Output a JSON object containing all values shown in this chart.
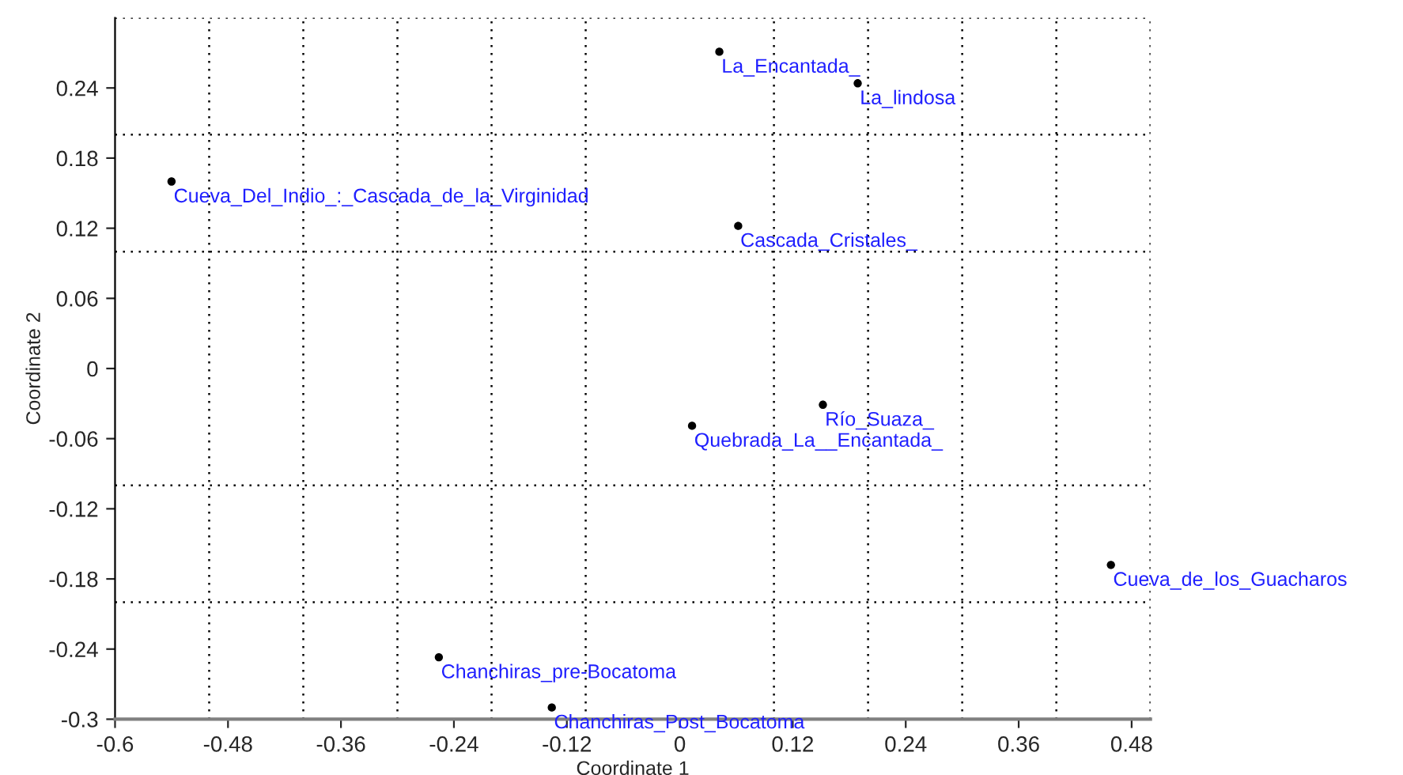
{
  "chart_data": {
    "type": "scatter",
    "xlabel": "Coordinate 1",
    "ylabel": "Coordinate 2",
    "x": [
      -0.54,
      0.042,
      0.189,
      0.062,
      0.152,
      0.013,
      0.458,
      -0.256,
      -0.136
    ],
    "series": [
      {
        "color": "#000000",
        "values": [
          0.16,
          0.271,
          0.244,
          0.122,
          -0.031,
          -0.049,
          -0.168,
          -0.247,
          -0.29
        ]
      }
    ],
    "annotations": [
      {
        "text": "Cueva_Del_Indio_:_Cascada_de_la_Virginidad",
        "x": -0.54,
        "y": 0.16
      },
      {
        "text": "La_Encantada_",
        "x": 0.042,
        "y": 0.271
      },
      {
        "text": "La_lindosa",
        "x": 0.189,
        "y": 0.244
      },
      {
        "text": "Cascada_Cristales_",
        "x": 0.062,
        "y": 0.122
      },
      {
        "text": "Río_Suaza_",
        "x": 0.152,
        "y": -0.031
      },
      {
        "text": "Quebrada_La__Encantada_",
        "x": 0.013,
        "y": -0.049
      },
      {
        "text": "Cueva_de_los_Guacharos",
        "x": 0.458,
        "y": -0.168
      },
      {
        "text": "Chanchiras_pre-Bocatoma",
        "x": -0.256,
        "y": -0.247
      },
      {
        "text": "Chanchiras_Post_Bocatoma",
        "x": -0.136,
        "y": -0.29
      }
    ],
    "xlim": [
      -0.6,
      0.5
    ],
    "ylim": [
      -0.3,
      0.3
    ],
    "xticks": [
      -0.6,
      -0.48,
      -0.36,
      -0.24,
      -0.12,
      0,
      0.12,
      0.24,
      0.36,
      0.48,
      {
        "value": -0.5,
        "label": null
      },
      {
        "value": -0.4,
        "label": null
      },
      {
        "value": -0.3,
        "label": null
      },
      {
        "value": -0.2,
        "label": null
      },
      {
        "value": -0.1,
        "label": null
      },
      {
        "value": 0.1,
        "label": null
      },
      {
        "value": 0.2,
        "label": null
      },
      {
        "value": 0.3,
        "label": null
      },
      {
        "value": 0.4,
        "label": null
      },
      {
        "value": 0.5,
        "label": null
      }
    ],
    "yticks": [
      -0.3,
      -0.24,
      -0.18,
      -0.12,
      -0.06,
      0,
      0.06,
      0.12,
      0.18,
      0.24,
      {
        "value": -0.2,
        "label": null
      },
      {
        "value": -0.1,
        "label": null
      },
      {
        "value": 0.1,
        "label": null
      },
      {
        "value": 0.2,
        "label": null
      },
      {
        "value": 0.3,
        "label": null
      }
    ],
    "grid": true,
    "marker": "circle"
  }
}
